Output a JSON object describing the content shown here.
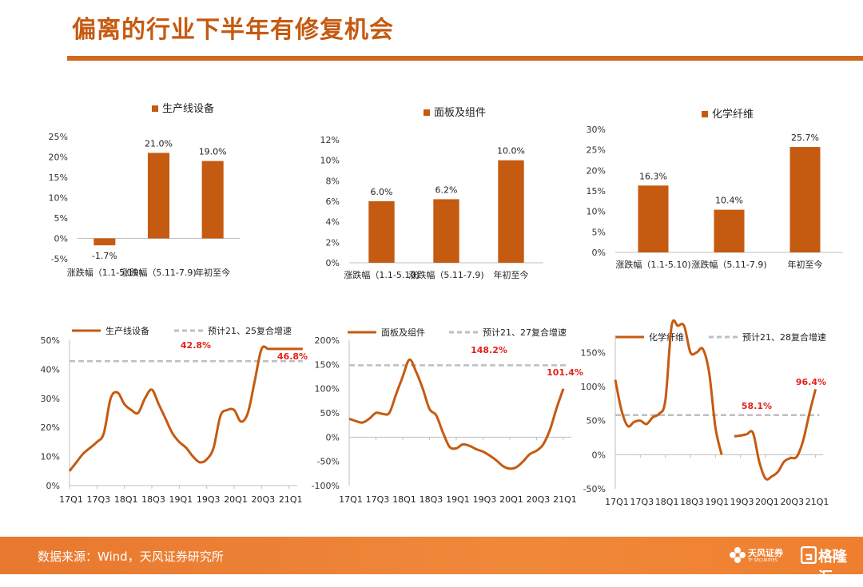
{
  "page": {
    "title": "偏离的行业下半年有修复机会",
    "source": "数据来源：Wind，天风证券研究所",
    "logo_text": "天风证券",
    "logo_sub": "TF SECURITIES",
    "page_number": "32",
    "watermark": "格隆汇"
  },
  "colors": {
    "accent": "#c55a11",
    "bar": "#c55a11",
    "line": "#c55a11",
    "dashed": "#bfbfbf",
    "annotation": "#e2231a",
    "footer": "#ef7f2f"
  },
  "chart_data": [
    {
      "type": "bar",
      "legend": "生产线设备",
      "categories": [
        "涨跌幅（1.1-5.10)",
        "涨跌幅（5.11-7.9)",
        "年初至今"
      ],
      "values": [
        -1.7,
        21.0,
        19.0
      ],
      "value_labels": [
        "-1.7%",
        "21.0%",
        "19.0%"
      ],
      "ylim": [
        -5,
        25
      ],
      "yticks": [
        "-5%",
        "0%",
        "5%",
        "10%",
        "15%",
        "20%",
        "25%"
      ],
      "ytick_values": [
        -5,
        0,
        5,
        10,
        15,
        20,
        25
      ]
    },
    {
      "type": "bar",
      "legend": "面板及组件",
      "categories": [
        "涨跌幅（1.1-5.10)",
        "涨跌幅（5.11-7.9)",
        "年初至今"
      ],
      "values": [
        6.0,
        6.2,
        10.0
      ],
      "value_labels": [
        "6.0%",
        "6.2%",
        "10.0%"
      ],
      "ylim": [
        0,
        12
      ],
      "yticks": [
        "0%",
        "2%",
        "4%",
        "6%",
        "8%",
        "10%",
        "12%"
      ],
      "ytick_values": [
        0,
        2,
        4,
        6,
        8,
        10,
        12
      ]
    },
    {
      "type": "bar",
      "legend": "化学纤维",
      "categories": [
        "涨跌幅（1.1-5.10)",
        "涨跌幅（5.11-7.9)",
        "年初至今"
      ],
      "values": [
        16.3,
        10.4,
        25.7
      ],
      "value_labels": [
        "16.3%",
        "10.4%",
        "25.7%"
      ],
      "ylim": [
        0,
        30
      ],
      "yticks": [
        "0%",
        "5%",
        "10%",
        "15%",
        "20%",
        "25%",
        "30%"
      ],
      "ytick_values": [
        0,
        5,
        10,
        15,
        20,
        25,
        30
      ]
    },
    {
      "type": "line",
      "series": [
        {
          "name": "生产线设备",
          "style": "solid",
          "x": [
            0,
            0.5,
            1,
            1.5,
            2,
            2.5,
            3,
            3.5,
            4,
            4.5,
            5,
            5.5,
            6,
            6.5,
            7,
            7.5,
            8,
            8.5,
            9,
            9.5,
            10,
            10.5,
            11,
            11.5,
            12,
            12.5,
            13,
            13.5,
            14,
            14.5,
            15,
            15.5,
            16,
            16.5,
            17
          ],
          "y": [
            5,
            8,
            11,
            13,
            15,
            18,
            30,
            32,
            28,
            26,
            25,
            30,
            33,
            28,
            23,
            18,
            15,
            13,
            10,
            8,
            9,
            13,
            24,
            26,
            26,
            22,
            25,
            36,
            47,
            47,
            47,
            47,
            47,
            47,
            47
          ]
        },
        {
          "name": "预计21、25复合增速",
          "style": "dashed",
          "x": [
            0,
            17
          ],
          "y": [
            42.8,
            42.8
          ]
        }
      ],
      "annotations": [
        "42.8%",
        "46.8%"
      ],
      "ylim": [
        0,
        50
      ],
      "yticks": [
        "0%",
        "10%",
        "20%",
        "30%",
        "40%",
        "50%"
      ],
      "ytick_values": [
        0,
        10,
        20,
        30,
        40,
        50
      ],
      "xticks": [
        "17Q1",
        "17Q3",
        "18Q1",
        "18Q3",
        "19Q1",
        "19Q3",
        "20Q1",
        "20Q3",
        "21Q1"
      ],
      "xtick_values": [
        0,
        2,
        4,
        6,
        8,
        10,
        12,
        14,
        16
      ],
      "xlim": [
        0,
        16.6
      ]
    },
    {
      "type": "line",
      "series": [
        {
          "name": "面板及组件",
          "style": "solid",
          "x": [
            0,
            0.5,
            1,
            1.5,
            2,
            2.5,
            3,
            3.5,
            4,
            4.5,
            5,
            5.5,
            6,
            6.5,
            7,
            7.5,
            8,
            8.5,
            9,
            9.5,
            10,
            10.5,
            11,
            11.5,
            12,
            12.5,
            13,
            13.5,
            14,
            14.5,
            15,
            15.5,
            16
          ],
          "y": [
            38,
            33,
            30,
            38,
            50,
            48,
            50,
            88,
            125,
            160,
            135,
            100,
            58,
            45,
            10,
            -20,
            -23,
            -15,
            -18,
            -25,
            -30,
            -38,
            -48,
            -60,
            -65,
            -62,
            -50,
            -35,
            -28,
            -15,
            15,
            60,
            100
          ]
        },
        {
          "name": "预计21、27复合增速",
          "style": "dashed",
          "x": [
            0,
            16.3
          ],
          "y": [
            148.2,
            148.2
          ]
        }
      ],
      "annotations": [
        "148.2%",
        "101.4%"
      ],
      "ylim": [
        -100,
        200
      ],
      "yticks": [
        "-100%",
        "-50%",
        "0%",
        "50%",
        "100%",
        "150%",
        "200%"
      ],
      "ytick_values": [
        -100,
        -50,
        0,
        50,
        100,
        150,
        200
      ],
      "xticks": [
        "17Q1",
        "17Q3",
        "18Q1",
        "18Q3",
        "19Q1",
        "19Q3",
        "20Q1",
        "20Q3",
        "21Q1"
      ],
      "xtick_values": [
        0,
        2,
        4,
        6,
        8,
        10,
        12,
        14,
        16
      ],
      "xlim": [
        0,
        16.6
      ]
    },
    {
      "type": "line",
      "series": [
        {
          "name": "化学纤维",
          "style": "solid",
          "x": [
            0,
            0.5,
            1,
            1.5,
            2,
            2.5,
            3,
            3.5,
            4,
            4.5,
            5,
            5.5,
            6,
            6.5,
            7,
            7.5,
            8,
            8.5,
            9,
            9.5,
            10,
            10.5,
            11,
            11.5,
            12,
            12.5,
            13,
            13.5,
            14,
            14.5,
            15,
            15.5,
            16
          ],
          "y": [
            110,
            65,
            42,
            48,
            50,
            45,
            55,
            60,
            80,
            190,
            190,
            190,
            150,
            150,
            155,
            120,
            40,
            0,
            22,
            27,
            28,
            30,
            32,
            -10,
            -35,
            -32,
            -25,
            -10,
            -5,
            -3,
            20,
            60,
            96
          ],
          "gaps": [
            [
              8.5,
              9.5
            ]
          ]
        },
        {
          "name": "预计21、28复合增速",
          "style": "dashed",
          "x": [
            0,
            16.3
          ],
          "y": [
            58.1,
            58.1
          ]
        }
      ],
      "annotations": [
        "58.1%",
        "96.4%"
      ],
      "ylim": [
        -50,
        175
      ],
      "yticks": [
        "-50%",
        "0%",
        "50%",
        "100%",
        "150%"
      ],
      "ytick_values": [
        -50,
        0,
        50,
        100,
        150
      ],
      "xticks": [
        "17Q1",
        "17Q3",
        "18Q1",
        "18Q3",
        "19Q1",
        "19Q3",
        "20Q1",
        "20Q3",
        "21Q1"
      ],
      "xtick_values": [
        0,
        2,
        4,
        6,
        8,
        10,
        12,
        14,
        16
      ],
      "xlim": [
        0,
        16.6
      ]
    }
  ]
}
